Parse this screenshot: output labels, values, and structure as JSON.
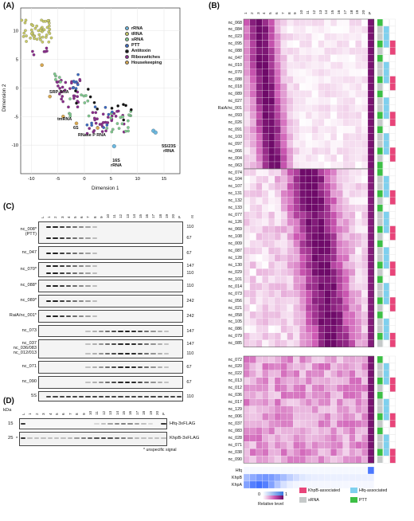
{
  "panels": {
    "A": "(A)",
    "B": "(B)",
    "C": "(C)",
    "D": "(D)"
  },
  "panelA": {
    "xlabel": "Dimension 1",
    "ylabel": "Dimension 2",
    "xticks": [
      "-10",
      "-5",
      "0",
      "5",
      "10",
      "15"
    ],
    "yticks": [
      "10",
      "5",
      "0",
      "-5",
      "-10"
    ],
    "legend": [
      {
        "label": "rRNA",
        "color": "#6bb8e0"
      },
      {
        "label": "tRNA",
        "color": "#c9cb66"
      },
      {
        "label": "sRNA",
        "color": "#7fc98e"
      },
      {
        "label": "PTT",
        "color": "#3a68c0"
      },
      {
        "label": "Antitoxin",
        "color": "#111111"
      },
      {
        "label": "Riboswitches",
        "color": "#8a2b8c"
      },
      {
        "label": "Housekeeping",
        "color": "#d8a850"
      }
    ],
    "annotations": [
      "SRP-RNA",
      "tmRNA",
      "6S",
      "RNase P RNA",
      "16S rRNA",
      "5S/23S rRNA"
    ]
  },
  "panelB": {
    "lanes": [
      "1",
      "2",
      "3",
      "4",
      "5",
      "6",
      "7",
      "8",
      "9",
      "10",
      "11",
      "12",
      "13",
      "14",
      "15",
      "16",
      "17",
      "18",
      "19",
      "20",
      "P"
    ],
    "group1": [
      "nc_068",
      "nc_084",
      "nc_023",
      "nc_095",
      "nc_088",
      "nc_047",
      "nc_010",
      "nc_070",
      "nc_088",
      "nc_018",
      "nc_089",
      "nc_027",
      "RaiA/nc_001",
      "nc_093",
      "nc_026",
      "nc_091",
      "nc_103",
      "nc_097",
      "nc_066",
      "nc_004",
      "nc_063"
    ],
    "group2": [
      "nc_074",
      "nc_104",
      "nc_107",
      "nc_131",
      "nc_132",
      "nc_133",
      "nc_077",
      "nc_126",
      "nc_069",
      "nc_108",
      "nc_009",
      "nc_087",
      "nc_128",
      "nc_130",
      "nc_029",
      "nc_101",
      "nc_014",
      "nc_073",
      "nc_056",
      "nc_021",
      "nc_058",
      "nc_105",
      "nc_086",
      "nc_079",
      "nc_085"
    ],
    "group3": [
      "nc_072",
      "nc_020",
      "nc_022",
      "nc_013",
      "nc_012",
      "nc_036",
      "nc_017",
      "nc_129",
      "nc_006",
      "nc_037",
      "nc_083",
      "nc_028",
      "nc_071",
      "nc_038",
      "nc_090"
    ],
    "proteins": [
      "Hfq",
      "KhpB",
      "KhpA"
    ],
    "scale_min": "0",
    "scale_max": "1",
    "scale_title": "Relative level",
    "legend": [
      {
        "label": "KhpB-associated",
        "color": "#e8457a"
      },
      {
        "label": "Hfq-associated",
        "color": "#7fd0ee"
      },
      {
        "label": "sRNA",
        "color": "#c5c9c9"
      },
      {
        "label": "PTT",
        "color": "#3cbf45"
      }
    ]
  },
  "panelC": {
    "lanes": [
      "L",
      "1",
      "2",
      "3",
      "4",
      "5",
      "6",
      "7",
      "8",
      "9",
      "10",
      "11",
      "12",
      "13",
      "14",
      "15",
      "16",
      "17",
      "18",
      "19",
      "20",
      "P",
      "nt"
    ],
    "blots": [
      {
        "label": "nc_008*\n(PTT)",
        "sizes": [
          "110",
          "67"
        ]
      },
      {
        "label": "nc_047",
        "sizes": [
          "67"
        ]
      },
      {
        "label": "nc_070*",
        "sizes": [
          "147",
          "110"
        ]
      },
      {
        "label": "nc_088*",
        "sizes": [
          "110"
        ]
      },
      {
        "label": "nc_089*",
        "sizes": [
          "242"
        ]
      },
      {
        "label": "RaiA/nc_001*",
        "sizes": [
          "242"
        ]
      },
      {
        "label": "nc_073",
        "sizes": [
          "147"
        ]
      },
      {
        "label": "nc_037\nnc_036/083\nnc_012/013",
        "sizes": [
          "147",
          "110"
        ]
      },
      {
        "label": "nc_071",
        "sizes": [
          "67"
        ]
      },
      {
        "label": "nc_090",
        "sizes": [
          "67"
        ]
      },
      {
        "label": "5S",
        "sizes": [
          "110"
        ]
      }
    ]
  },
  "panelD": {
    "kda": "kDa",
    "lanes": [
      "L",
      "1",
      "2",
      "3",
      "4",
      "5",
      "6",
      "7",
      "8",
      "9",
      "10",
      "11",
      "12",
      "13",
      "14",
      "15",
      "16",
      "17",
      "18",
      "19",
      "20",
      "P"
    ],
    "markers": [
      "15",
      "25"
    ],
    "labels": [
      "Hfq-3xFLAG",
      "KhpB-3xFLAG"
    ],
    "footnote": "* unspecific signal",
    "asterisk": "*"
  }
}
